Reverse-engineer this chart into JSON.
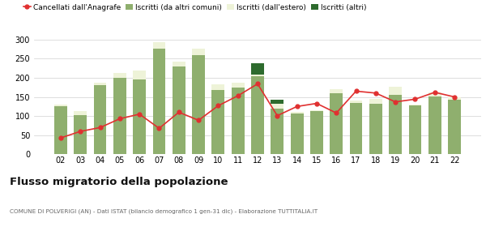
{
  "years": [
    "02",
    "03",
    "04",
    "05",
    "06",
    "07",
    "08",
    "09",
    "10",
    "11",
    "12",
    "13",
    "14",
    "15",
    "16",
    "17",
    "18",
    "19",
    "20",
    "21",
    "22"
  ],
  "iscritti_altri_comuni": [
    125,
    102,
    180,
    200,
    196,
    275,
    230,
    260,
    168,
    175,
    205,
    120,
    107,
    112,
    160,
    135,
    133,
    155,
    127,
    152,
    143
  ],
  "iscritti_estero": [
    5,
    12,
    8,
    12,
    22,
    18,
    12,
    15,
    15,
    12,
    3,
    12,
    3,
    3,
    10,
    5,
    12,
    22,
    3,
    10,
    5
  ],
  "iscritti_altri": [
    0,
    0,
    0,
    0,
    0,
    0,
    0,
    0,
    0,
    0,
    30,
    10,
    0,
    0,
    0,
    0,
    0,
    0,
    0,
    0,
    0
  ],
  "cancellati": [
    43,
    60,
    70,
    93,
    105,
    68,
    110,
    89,
    127,
    153,
    184,
    101,
    125,
    133,
    108,
    165,
    160,
    137,
    144,
    162,
    150
  ],
  "color_altri_comuni": "#8faf6e",
  "color_estero": "#eef3d8",
  "color_altri": "#2e6b2e",
  "color_cancellati": "#e03030",
  "title": "Flusso migratorio della popolazione",
  "subtitle": "COMUNE DI POLVERIGI (AN) - Dati ISTAT (bilancio demografico 1 gen-31 dic) - Elaborazione TUTTITALIA.IT",
  "legend_labels": [
    "Iscritti (da altri comuni)",
    "Iscritti (dall'estero)",
    "Iscritti (altri)",
    "Cancellati dall'Anagrafe"
  ],
  "ylim": [
    0,
    320
  ],
  "yticks": [
    0,
    50,
    100,
    150,
    200,
    250,
    300
  ]
}
